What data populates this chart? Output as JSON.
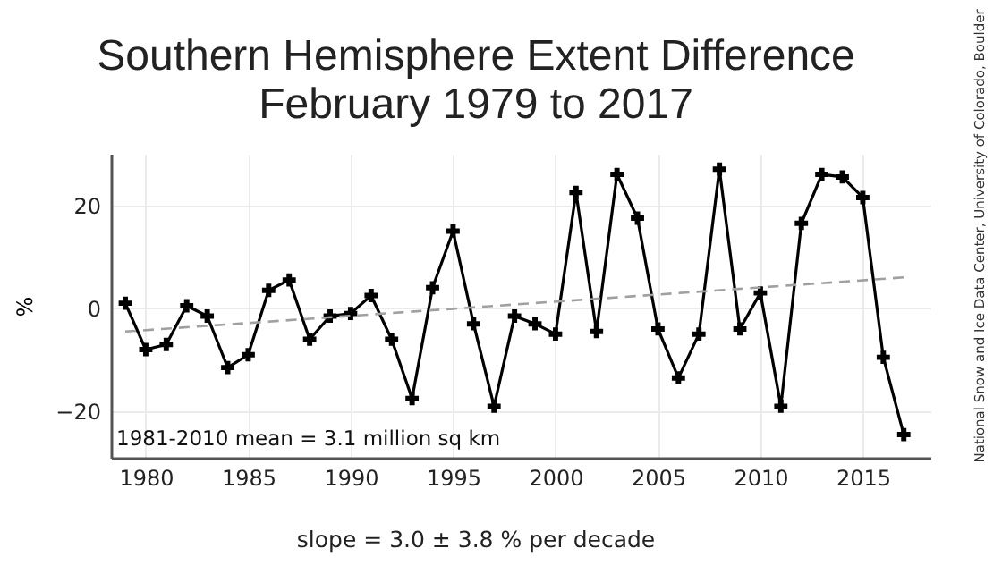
{
  "chart_data": {
    "type": "line",
    "title": "Southern Hemisphere Extent Difference",
    "subtitle": "February 1979 to 2017",
    "ylabel": "%",
    "x": [
      1979,
      1980,
      1981,
      1982,
      1983,
      1984,
      1985,
      1986,
      1987,
      1988,
      1989,
      1990,
      1991,
      1992,
      1993,
      1994,
      1995,
      1996,
      1997,
      1998,
      1999,
      2000,
      2001,
      2002,
      2003,
      2004,
      2005,
      2006,
      2007,
      2008,
      2009,
      2010,
      2011,
      2012,
      2013,
      2014,
      2015,
      2016,
      2017
    ],
    "series": [
      {
        "color": "#000000",
        "marker": "cross",
        "values": [
          1,
          -8,
          -7,
          0.5,
          -1.5,
          -11.5,
          -9,
          3.5,
          5.5,
          -6,
          -1.5,
          -1,
          2.5,
          -6,
          -17.5,
          4,
          15,
          -3,
          -19,
          -1.5,
          -3,
          -5,
          22.5,
          -4.5,
          26,
          17.5,
          -4,
          -13.5,
          -5,
          27,
          -4,
          3,
          -19,
          16.5,
          26,
          25.5,
          21.5,
          -9.5,
          -24.5
        ]
      },
      {
        "type": "line",
        "color": "#a0a0a0",
        "line_style": "dashed",
        "marker": "none",
        "x": [
          1979,
          2017
        ],
        "values": [
          -4.5,
          6
        ]
      }
    ],
    "xlim": [
      1978.3,
      2018.3
    ],
    "xticks": [
      1980,
      1985,
      1990,
      1995,
      2000,
      2005,
      2010,
      2015
    ],
    "ylim": [
      -29,
      30
    ],
    "yticks": [
      -20,
      0,
      20
    ],
    "grid": true,
    "legend": false,
    "annotations": [
      "1981-2010 mean = 3.1 million sq km",
      "slope = 3.0 ± 3.8 % per decade",
      "National Snow and Ice Data Center, University of Colorado, Boulder"
    ]
  }
}
